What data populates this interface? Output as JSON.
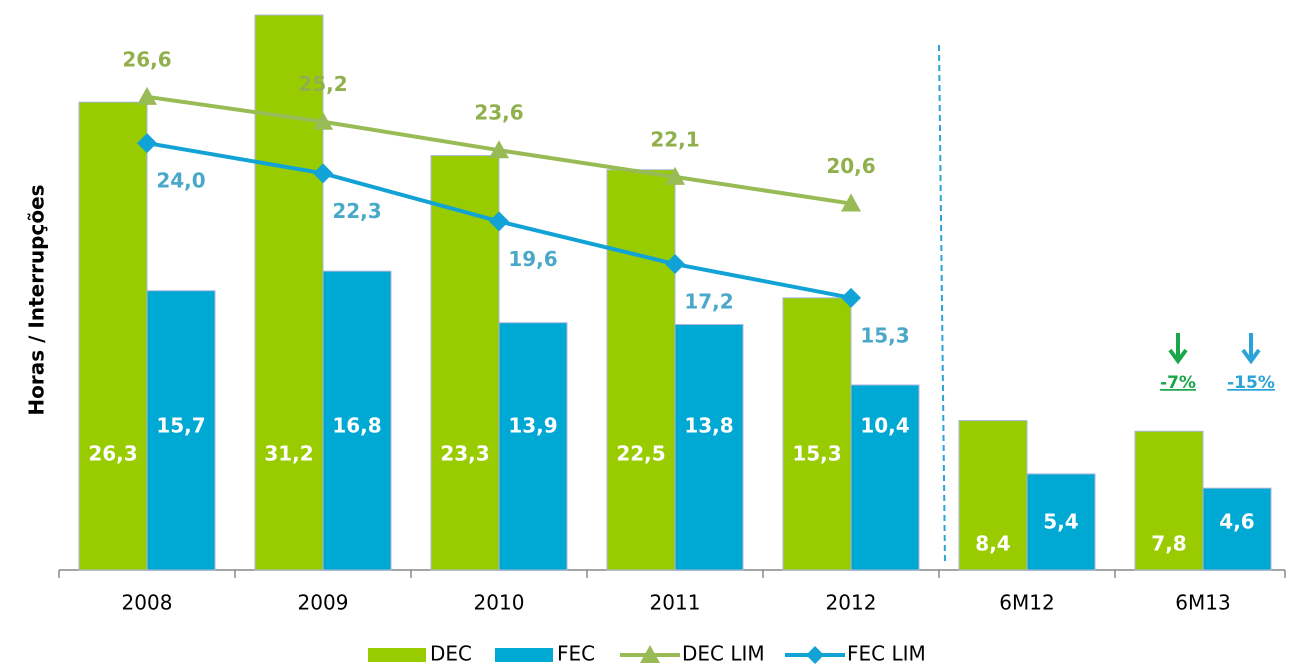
{
  "chart_data": {
    "type": "bar",
    "y_label": "Horas / Interrupções",
    "categories": [
      "2008",
      "2009",
      "2010",
      "2011",
      "2012",
      "6M12",
      "6M13"
    ],
    "ylim": [
      0,
      31.2
    ],
    "series": [
      {
        "name": "DEC",
        "type": "bar",
        "color": "#99cc00",
        "values": [
          26.3,
          31.2,
          23.3,
          22.5,
          15.3,
          8.4,
          7.8
        ],
        "value_labels": [
          "26,3",
          "31,2",
          "23,3",
          "22,5",
          "15,3",
          "8,4",
          "7,8"
        ]
      },
      {
        "name": "FEC",
        "type": "bar",
        "color": "#00a8d4",
        "values": [
          15.7,
          16.8,
          13.9,
          13.8,
          10.4,
          5.4,
          4.6
        ],
        "value_labels": [
          "15,7",
          "16,8",
          "13,9",
          "13,8",
          "10,4",
          "5,4",
          "4,6"
        ]
      },
      {
        "name": "DEC LIM",
        "type": "line",
        "color": "#99bb55",
        "values": [
          26.6,
          25.2,
          23.6,
          22.1,
          20.6,
          null,
          null
        ],
        "value_labels": [
          "26,6",
          "25,2",
          "23,6",
          "22,1",
          "20,6",
          null,
          null
        ]
      },
      {
        "name": "FEC LIM",
        "type": "line",
        "color": "#12a3d6",
        "values": [
          24.0,
          22.3,
          19.6,
          17.2,
          15.3,
          null,
          null
        ],
        "value_labels": [
          "24,0",
          "22,3",
          "19,6",
          "17,2",
          "15,3",
          null,
          null
        ]
      }
    ],
    "annotations": [
      {
        "text": "-7%",
        "color": "#1aa64a"
      },
      {
        "text": "-15%",
        "color": "#2aa3d8"
      }
    ]
  }
}
